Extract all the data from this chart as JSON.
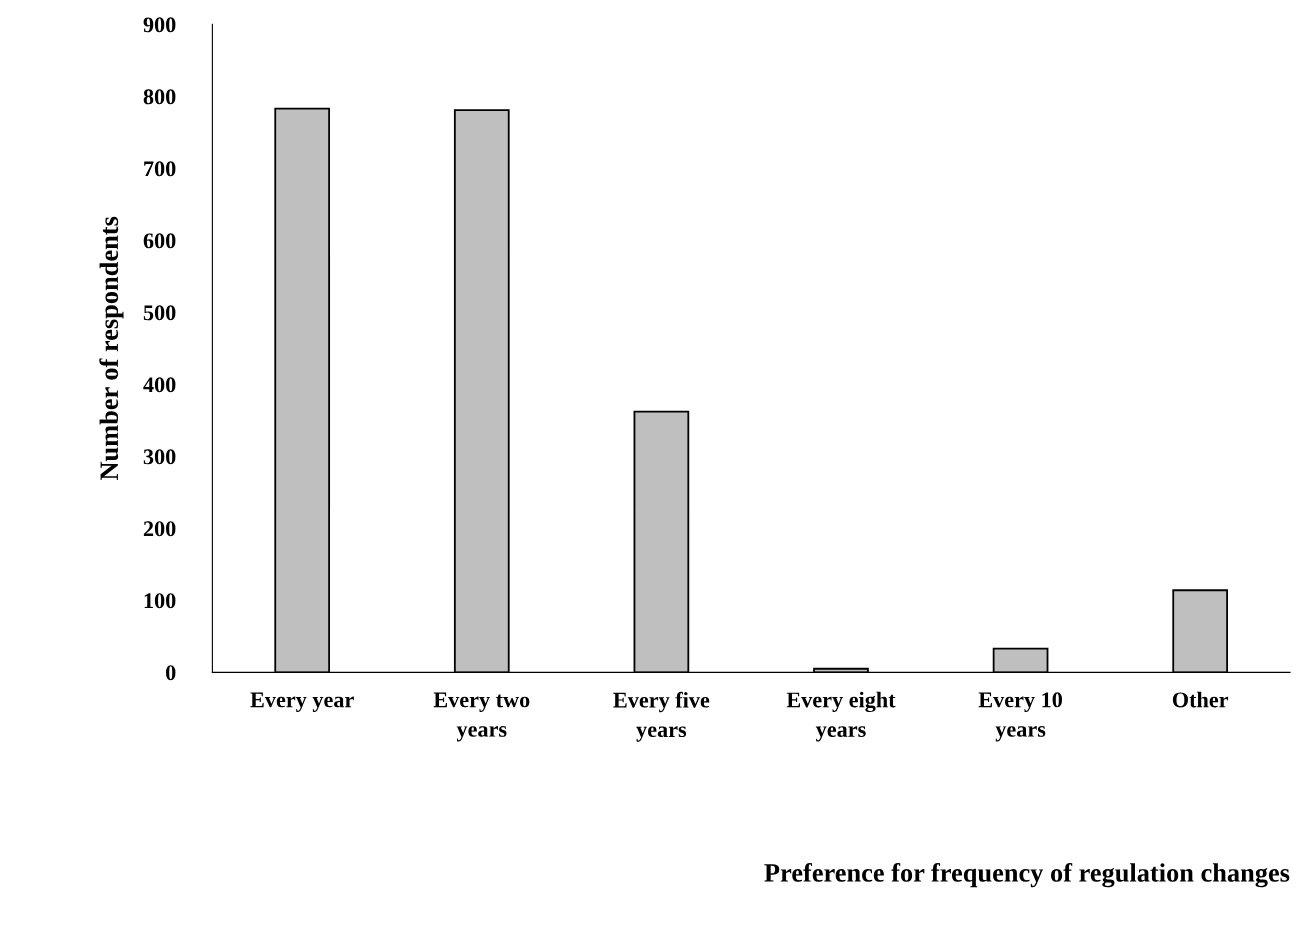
{
  "chart_data": {
    "type": "bar",
    "annotations": [
      "Preference for frequency of regulation changes"
    ],
    "ylabel": "Number of respondents",
    "categories": [
      "Every year",
      "Every two\nyears",
      "Every five\nyears",
      "Every eight\nyears",
      "Every 10\nyears",
      "Other"
    ],
    "values": [
      783,
      781,
      362,
      5,
      33,
      114
    ],
    "color": "#bfbfbf",
    "ylim": [
      0,
      900
    ],
    "yticks": [
      0,
      100,
      200,
      300,
      400,
      500,
      600,
      700,
      800,
      900
    ],
    "grid": false,
    "legend": false
  }
}
